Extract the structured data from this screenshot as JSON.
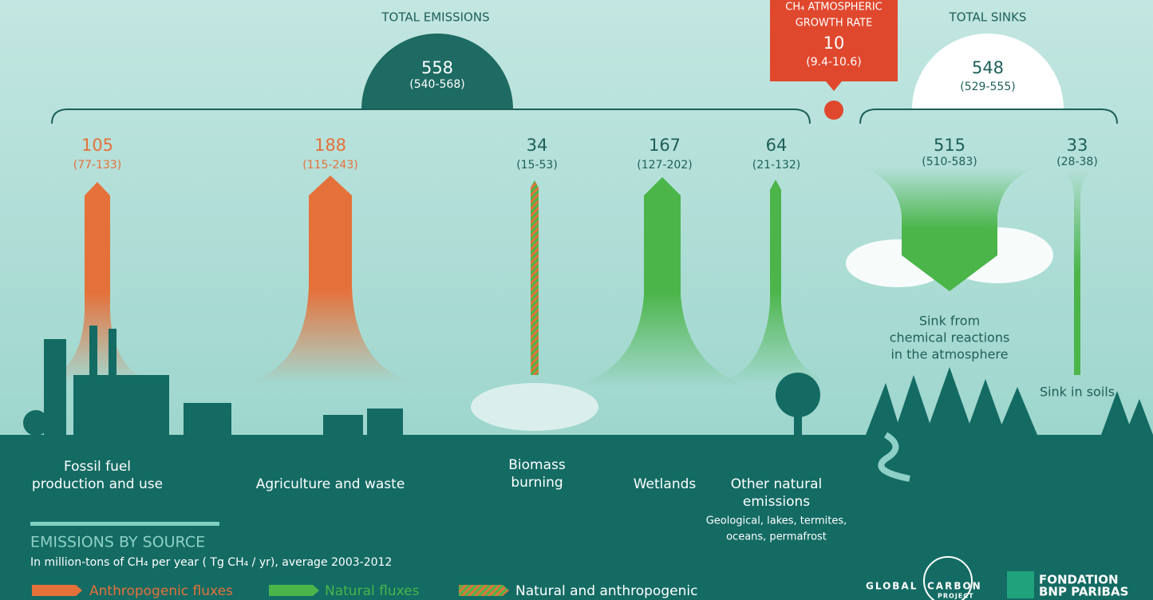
{
  "total_emissions": {
    "label": "TOTAL EMISSIONS",
    "value": "558",
    "range": "(540-568)"
  },
  "growth_rate": {
    "label": [
      "CH₄ ATMOSPHERIC",
      "GROWTH RATE"
    ],
    "value": "10",
    "range": "(9.4-10.6)"
  },
  "total_sinks": {
    "label": "TOTAL SINKS",
    "value": "548",
    "range": "(529-555)"
  },
  "sources": [
    {
      "value": "105",
      "range": "(77-133)",
      "label": [
        "Fossil fuel",
        "production and use"
      ]
    },
    {
      "value": "188",
      "range": "(115-243)",
      "label": [
        "Agriculture and waste"
      ]
    },
    {
      "value": "34",
      "range": "(15-53)",
      "label": [
        "Biomass",
        "burning"
      ]
    },
    {
      "value": "167",
      "range": "(127-202)",
      "label": [
        "Wetlands"
      ]
    },
    {
      "value": "64",
      "range": "(21-132)",
      "label": [
        "Other natural",
        "emissions"
      ],
      "note": [
        "Geological, lakes, termites,",
        "oceans, permafrost"
      ]
    }
  ],
  "sinks": [
    {
      "value": "515",
      "range": "(510-583)",
      "label": [
        "Sink from",
        "chemical reactions",
        "in the atmosphere"
      ]
    },
    {
      "value": "33",
      "range": "(28-38)",
      "label": [
        "Sink in soils"
      ]
    }
  ],
  "legend": {
    "title": "EMISSIONS BY SOURCE",
    "subtitle": "In million-tons of CH₄ per year ( Tg CH₄ / yr), average 2003-2012",
    "items": [
      "Anthropogenic fluxes",
      "Natural fluxes",
      "Natural and anthropogenic"
    ]
  },
  "logos": {
    "gcp": [
      "GLOBAL",
      "CARBON",
      "PROJECT"
    ],
    "bnp": [
      "FONDATION",
      "BNP PARIBAS"
    ]
  }
}
